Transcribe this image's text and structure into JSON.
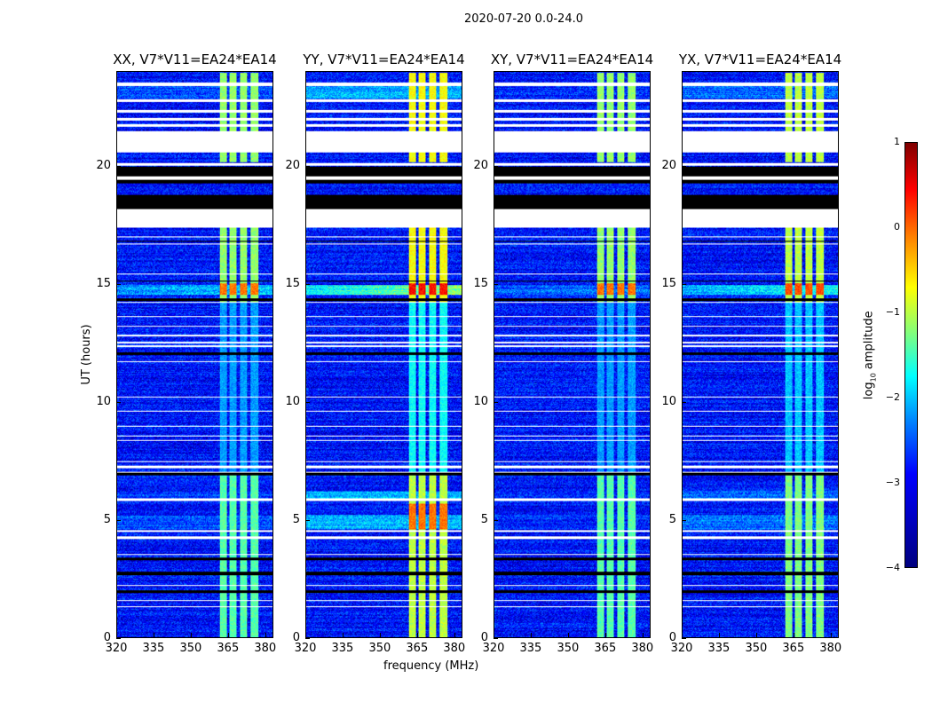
{
  "chart_data": {
    "type": "heatmap",
    "title": "2020-07-20 0.0-24.0",
    "xlabel": "frequency (MHz)",
    "ylabel": "UT (hours)",
    "xlim": [
      320,
      383.3
    ],
    "ylim": [
      0,
      24
    ],
    "xticks": [
      "320",
      "335",
      "350",
      "365",
      "380"
    ],
    "xtick_values": [
      320,
      335,
      350,
      365,
      380
    ],
    "yticks": [
      "0",
      "5",
      "10",
      "15",
      "20"
    ],
    "ytick_values": [
      0,
      5,
      10,
      15,
      20
    ],
    "colorbar": {
      "label_main": "log",
      "label_sub": "10",
      "label_rest": " amplitude",
      "colormap": "jet",
      "range": [
        -4,
        1
      ],
      "ticks": [
        "1",
        "0",
        "−1",
        "−2",
        "−3",
        "−4"
      ],
      "tick_values": [
        1,
        0,
        -1,
        -2,
        -3,
        -4
      ]
    },
    "background_level": -3.3,
    "rfi_channels_mhz": [
      [
        361.5,
        364.5
      ],
      [
        365.5,
        368.5
      ],
      [
        369.8,
        372.8
      ],
      [
        374.3,
        377.5
      ]
    ],
    "rfi_periods": [
      {
        "hours": [
          0,
          7
        ],
        "level": -1.7
      },
      {
        "hours": [
          7,
          14.2
        ],
        "level": -2.6
      },
      {
        "hours": [
          14.2,
          17.5
        ],
        "level": -1.4
      },
      {
        "hours": [
          20.2,
          24
        ],
        "level": -1.4
      }
    ],
    "rfi_peak": {
      "hours": [
        14.55,
        15.05
      ],
      "level": -0.2
    },
    "white_gaps_hours": [
      [
        23.4,
        23.55
      ],
      [
        22.75,
        22.85
      ],
      [
        22.3,
        22.4
      ],
      [
        21.95,
        22.05
      ],
      [
        21.7,
        21.8
      ],
      [
        20.6,
        21.5
      ],
      [
        20.05,
        20.15
      ],
      [
        19.45,
        19.6
      ],
      [
        17.4,
        18.2
      ],
      [
        17.0,
        17.05
      ],
      [
        16.7,
        16.75
      ],
      [
        15.4,
        15.45
      ],
      [
        14.2,
        14.25
      ],
      [
        13.6,
        13.65
      ],
      [
        13.2,
        13.25
      ],
      [
        12.8,
        12.85
      ],
      [
        12.5,
        12.55
      ],
      [
        12.35,
        12.4
      ],
      [
        11.7,
        11.75
      ],
      [
        10.2,
        10.25
      ],
      [
        9.6,
        9.65
      ],
      [
        8.95,
        9.0
      ],
      [
        8.55,
        8.6
      ],
      [
        8.35,
        8.4
      ],
      [
        7.45,
        7.5
      ],
      [
        7.2,
        7.3
      ],
      [
        7.0,
        7.05
      ],
      [
        5.8,
        5.9
      ],
      [
        4.5,
        4.55
      ],
      [
        4.2,
        4.3
      ],
      [
        3.5,
        3.55
      ],
      [
        2.2,
        2.25
      ],
      [
        1.55,
        1.6
      ],
      [
        1.3,
        1.35
      ]
    ],
    "flagged_black_hours": [
      [
        19.6,
        20.0
      ],
      [
        19.3,
        19.45
      ],
      [
        18.2,
        18.8
      ],
      [
        3.3,
        3.4
      ],
      [
        2.65,
        2.8
      ],
      [
        1.9,
        2.0
      ],
      [
        6.9,
        7.0
      ],
      [
        12.0,
        12.1
      ],
      [
        14.3,
        14.4
      ],
      [
        15.1,
        15.15
      ],
      [
        16.8,
        16.85
      ]
    ],
    "panels": [
      {
        "title": "XX, V7*V11=EA24*EA14",
        "rfi_gain": 0.0,
        "broadband_gain": 0.6
      },
      {
        "title": "YY, V7*V11=EA24*EA14",
        "rfi_gain": 0.5,
        "broadband_gain": 1.6
      },
      {
        "title": "XY, V7*V11=EA24*EA14",
        "rfi_gain": 0.0,
        "broadband_gain": 0.2
      },
      {
        "title": "YX, V7*V11=EA24*EA14",
        "rfi_gain": 0.2,
        "broadband_gain": 0.9
      }
    ]
  }
}
